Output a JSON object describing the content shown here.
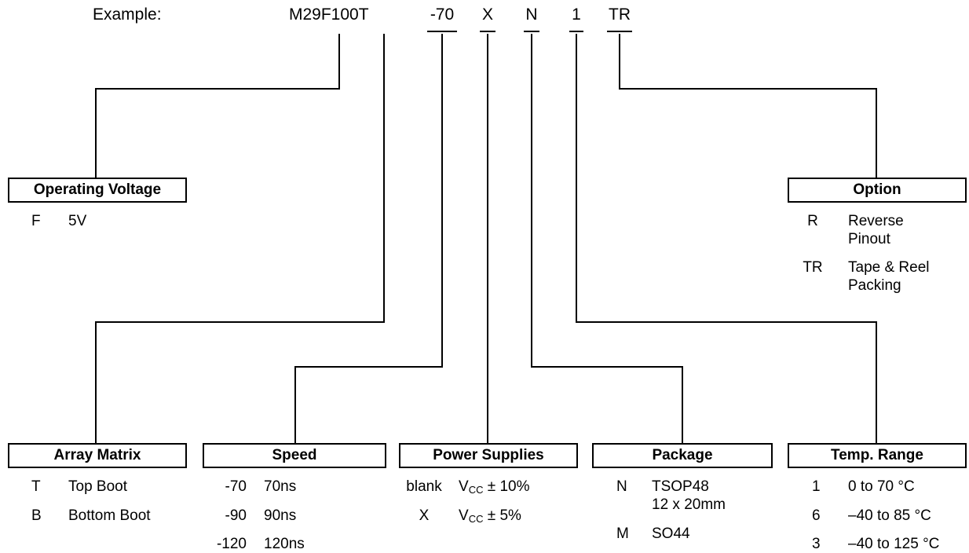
{
  "example": {
    "label": "Example:",
    "part": "M29F100T",
    "speed": "-70",
    "power": "X",
    "package": "N",
    "temp": "1",
    "option": "TR"
  },
  "operating_voltage": {
    "title": "Operating Voltage",
    "items": [
      {
        "code": "F",
        "desc": "5V"
      }
    ]
  },
  "option": {
    "title": "Option",
    "items": [
      {
        "code": "R",
        "desc_line1": "Reverse",
        "desc_line2": "Pinout"
      },
      {
        "code": "TR",
        "desc_line1": "Tape & Reel",
        "desc_line2": "Packing"
      }
    ]
  },
  "array_matrix": {
    "title": "Array Matrix",
    "items": [
      {
        "code": "T",
        "desc": "Top Boot"
      },
      {
        "code": "B",
        "desc": "Bottom Boot"
      }
    ]
  },
  "speed": {
    "title": "Speed",
    "items": [
      {
        "code": "-70",
        "desc": "70ns"
      },
      {
        "code": "-90",
        "desc": "90ns"
      },
      {
        "code": "-120",
        "desc": "120ns"
      }
    ]
  },
  "power_supplies": {
    "title": "Power Supplies",
    "items": [
      {
        "code": "blank",
        "v": "V",
        "sub": "CC",
        "tol": "± 10%"
      },
      {
        "code": "X",
        "v": "V",
        "sub": "CC",
        "tol": "± 5%"
      }
    ]
  },
  "package": {
    "title": "Package",
    "items": [
      {
        "code": "N",
        "desc_line1": "TSOP48",
        "desc_line2": "12 x 20mm"
      },
      {
        "code": "M",
        "desc_line1": "SO44"
      }
    ]
  },
  "temp_range": {
    "title": "Temp. Range",
    "items": [
      {
        "code": "1",
        "desc": "0 to 70 °C"
      },
      {
        "code": "6",
        "desc": "–40 to 85 °C"
      },
      {
        "code": "3",
        "desc": "–40 to 125 °C"
      }
    ]
  }
}
